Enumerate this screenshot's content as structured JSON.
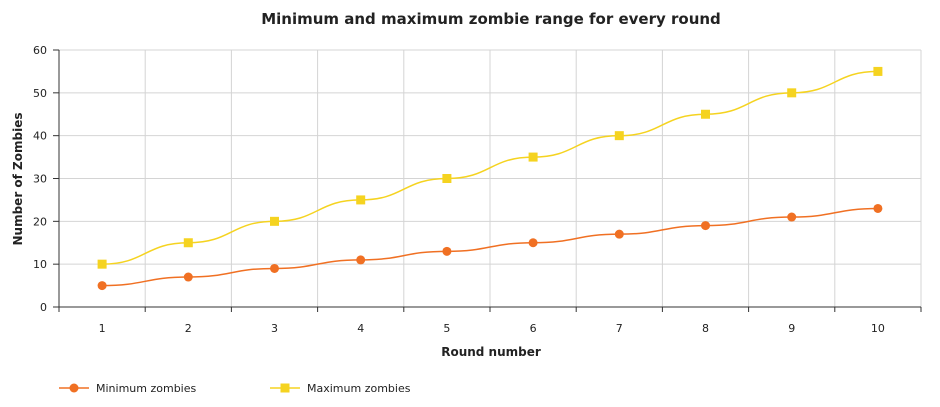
{
  "chart_data": {
    "type": "line",
    "title": "Minimum and maximum zombie range for every round",
    "xlabel": "Round number",
    "ylabel": "Number of Zombies",
    "categories": [
      "1",
      "2",
      "3",
      "4",
      "5",
      "6",
      "7",
      "8",
      "9",
      "10"
    ],
    "ylim": [
      0,
      60
    ],
    "yticks": [
      0,
      10,
      20,
      30,
      40,
      50,
      60
    ],
    "grid": true,
    "legend_position": "bottom-left",
    "series": [
      {
        "name": "Minimum zombies",
        "color": "#f07023",
        "marker": "circle",
        "values": [
          5,
          7,
          9,
          11,
          13,
          15,
          17,
          19,
          21,
          23
        ]
      },
      {
        "name": "Maximum zombies",
        "color": "#f5d320",
        "marker": "square",
        "values": [
          10,
          15,
          20,
          25,
          30,
          35,
          40,
          45,
          50,
          55
        ]
      }
    ]
  }
}
